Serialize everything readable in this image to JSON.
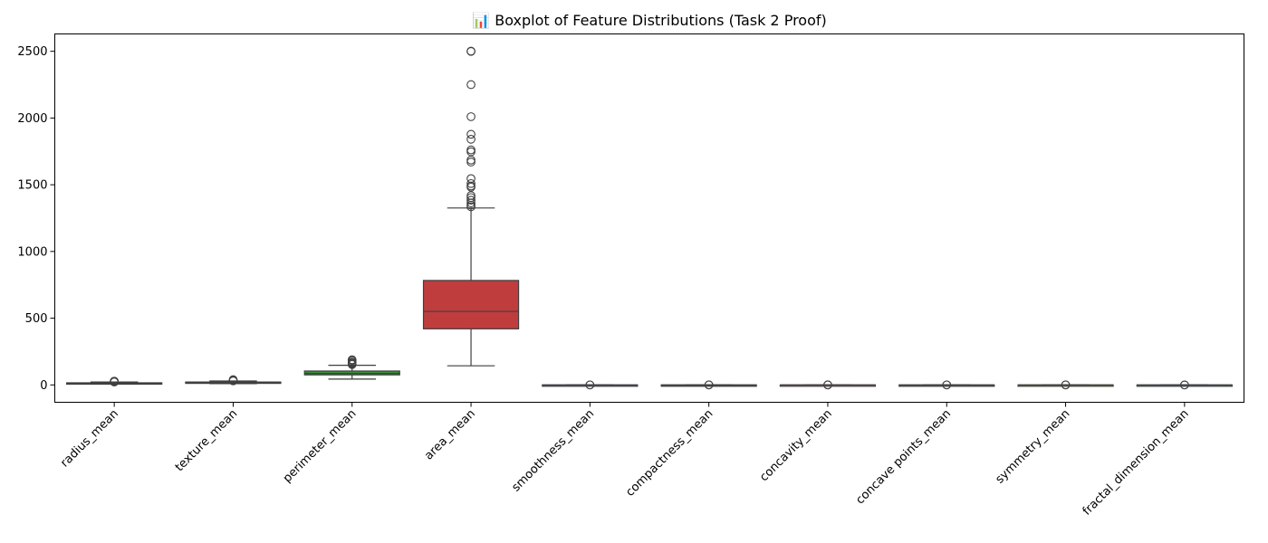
{
  "chart_data": {
    "type": "box",
    "title": "📊 Boxplot of Feature Distributions (Task 2 Proof)",
    "xlabel": "",
    "ylabel": "",
    "ylim": [
      -130,
      2630
    ],
    "yticks": [
      0,
      500,
      1000,
      1500,
      2000,
      2500
    ],
    "grid": false,
    "legend": "none",
    "categories": [
      "radius_mean",
      "texture_mean",
      "perimeter_mean",
      "area_mean",
      "smoothness_mean",
      "compactness_mean",
      "concavity_mean",
      "concave points_mean",
      "symmetry_mean",
      "fractal_dimension_mean"
    ],
    "colors": [
      "#3274a1",
      "#e1812c",
      "#3a923a",
      "#c03d3e",
      "#9372b2",
      "#845b53",
      "#d684bd",
      "#7f7f7f",
      "#a9aa35",
      "#3fa7b4"
    ],
    "boxes": [
      {
        "min": 7.0,
        "q1": 11.7,
        "median": 13.4,
        "q3": 15.8,
        "max": 21.9,
        "outliers": [
          22.3,
          23.3,
          24.3,
          25.2,
          27.2,
          28.1
        ]
      },
      {
        "min": 9.7,
        "q1": 16.2,
        "median": 18.8,
        "q3": 21.8,
        "max": 29.9,
        "outliers": [
          30.6,
          31.1,
          33.6,
          39.3
        ]
      },
      {
        "min": 43.8,
        "q1": 75.2,
        "median": 86.2,
        "q3": 104.1,
        "max": 147.3,
        "outliers": [
          152.8,
          158.9,
          166.2,
          171.5,
          182.1,
          188.5
        ]
      },
      {
        "min": 143.5,
        "q1": 420.3,
        "median": 551.1,
        "q3": 782.7,
        "max": 1326.0,
        "outliers": [
          1335,
          1347,
          1364,
          1384,
          1404,
          1419,
          1482,
          1491,
          1509,
          1546,
          1670,
          1685,
          1747,
          1761,
          1841,
          1878,
          2010,
          2250,
          2499,
          2501
        ]
      },
      {
        "min": 0.05,
        "q1": 0.09,
        "median": 0.1,
        "q3": 0.11,
        "max": 0.13,
        "outliers": [
          0.16,
          0.15
        ]
      },
      {
        "min": 0.02,
        "q1": 0.06,
        "median": 0.09,
        "q3": 0.13,
        "max": 0.23,
        "outliers": [
          0.28,
          0.35
        ]
      },
      {
        "min": 0.0,
        "q1": 0.03,
        "median": 0.06,
        "q3": 0.13,
        "max": 0.28,
        "outliers": [
          0.31,
          0.43
        ]
      },
      {
        "min": 0.0,
        "q1": 0.02,
        "median": 0.03,
        "q3": 0.07,
        "max": 0.15,
        "outliers": [
          0.16,
          0.2
        ]
      },
      {
        "min": 0.11,
        "q1": 0.16,
        "median": 0.18,
        "q3": 0.2,
        "max": 0.25,
        "outliers": [
          0.27,
          0.3
        ]
      },
      {
        "min": 0.05,
        "q1": 0.06,
        "median": 0.06,
        "q3": 0.07,
        "max": 0.08,
        "outliers": [
          0.09,
          0.1
        ]
      }
    ]
  }
}
